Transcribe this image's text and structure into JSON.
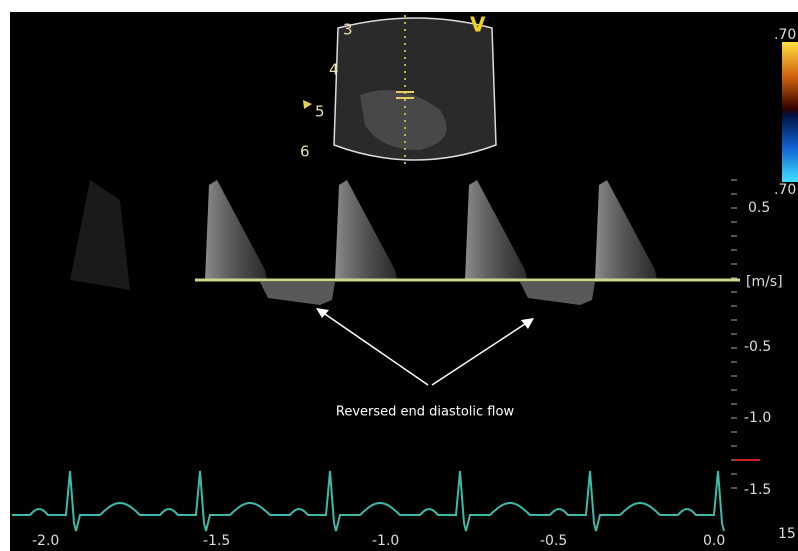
{
  "sector": {
    "depth_labels": [
      "3",
      "4",
      "5",
      "6"
    ],
    "mode_label": "V"
  },
  "color_scale": {
    "top": ".70",
    "bottom": ".70"
  },
  "velocity_scale": {
    "labels": [
      "0.5",
      "[m/s]",
      "-0.5",
      "-1.0",
      "-1.5"
    ]
  },
  "time_scale": {
    "labels": [
      "-2.0",
      "-1.5",
      "-1.0",
      "-0.5",
      "0.0"
    ]
  },
  "annotation": "Reversed end diastolic flow",
  "frame_rate": "15"
}
